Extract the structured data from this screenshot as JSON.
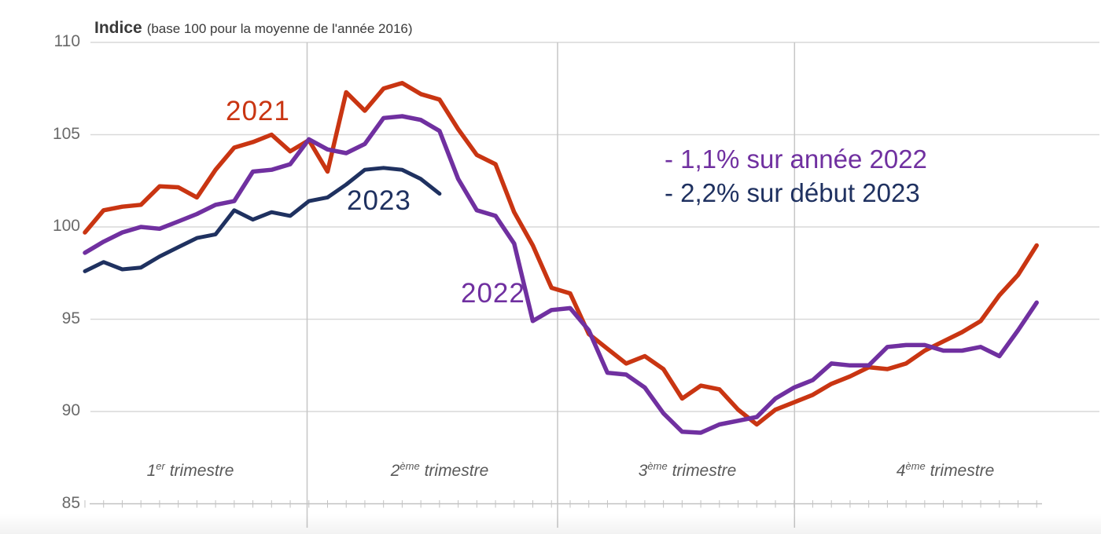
{
  "header": {
    "title_main": "Indice",
    "title_sub": "(base 100 pour la moyenne de l'année 2016)"
  },
  "chart_data": {
    "type": "line",
    "title": "Indice (base 100 pour la moyenne de l'année 2016)",
    "x_unit": "semaines",
    "n_weeks": 52,
    "ylim": [
      85,
      110
    ],
    "yticks": [
      110,
      105,
      100,
      95,
      90,
      85
    ],
    "grid": {
      "horizontal": true,
      "vertical_quarter_separators": true,
      "weekly_ticks_on_baseline": true
    },
    "x_sections": [
      {
        "num": "1",
        "sup": "er",
        "word": "trimestre"
      },
      {
        "num": "2",
        "sup": "ème",
        "word": "trimestre"
      },
      {
        "num": "3",
        "sup": "ème",
        "word": "trimestre"
      },
      {
        "num": "4",
        "sup": "ème",
        "word": "trimestre"
      }
    ],
    "series": [
      {
        "name": "2021",
        "color": "#c93512",
        "values": [
          99.7,
          100.9,
          101.1,
          101.2,
          102.2,
          102.15,
          101.6,
          103.1,
          104.3,
          104.6,
          105.0,
          104.1,
          104.7,
          103.0,
          107.3,
          106.3,
          107.5,
          107.8,
          107.2,
          106.9,
          105.3,
          103.9,
          103.4,
          100.8,
          99.0,
          96.7,
          96.4,
          94.2,
          93.4,
          92.6,
          93.0,
          92.3,
          90.7,
          91.4,
          91.2,
          90.1,
          89.3,
          90.1,
          90.5,
          90.9,
          91.5,
          91.9,
          92.4,
          92.3,
          92.6,
          93.3,
          93.8,
          94.3,
          94.9,
          96.3,
          97.4,
          99.0
        ]
      },
      {
        "name": "2022",
        "color": "#7030a0",
        "values": [
          98.6,
          99.2,
          99.7,
          100.0,
          99.9,
          100.3,
          100.7,
          101.2,
          101.4,
          103.0,
          103.1,
          103.4,
          104.75,
          104.2,
          104.0,
          104.5,
          105.9,
          106.0,
          105.8,
          105.2,
          102.6,
          100.9,
          100.6,
          99.1,
          94.9,
          95.5,
          95.6,
          94.4,
          92.1,
          92.0,
          91.3,
          89.9,
          88.9,
          88.85,
          89.3,
          89.5,
          89.7,
          90.7,
          91.3,
          91.7,
          92.6,
          92.5,
          92.5,
          93.5,
          93.6,
          93.6,
          93.3,
          93.3,
          93.5,
          93.0,
          94.4,
          95.9
        ]
      },
      {
        "name": "2023",
        "color": "#1f3160",
        "values": [
          97.6,
          98.1,
          97.7,
          97.8,
          98.4,
          98.9,
          99.4,
          99.6,
          100.9,
          100.4,
          100.8,
          100.6,
          101.4,
          101.6,
          102.3,
          103.1,
          103.2,
          103.1,
          102.6,
          101.8
        ]
      }
    ],
    "annotations": [
      {
        "text": "- 1,1% sur année 2022",
        "color": "#7030a0"
      },
      {
        "text": "- 2,2% sur début 2023",
        "color": "#1f3160"
      }
    ],
    "legend_position": "labels-on-lines"
  },
  "colors": {
    "gridline": "#d9d9d9",
    "separator": "#c6c6c6",
    "axis": "#c2c2c2",
    "tick_label": "#6a6a6a",
    "section_label": "#595959",
    "title_text": "#3a3a3a"
  }
}
